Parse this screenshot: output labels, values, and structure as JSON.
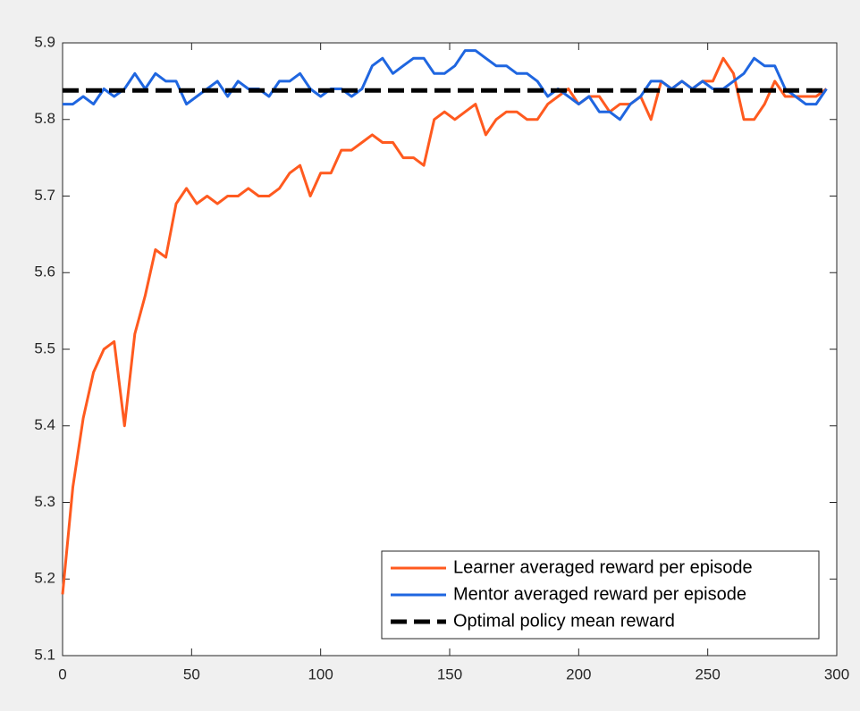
{
  "chart_data": {
    "type": "line",
    "x": [
      0,
      4,
      8,
      12,
      16,
      20,
      24,
      28,
      32,
      36,
      40,
      44,
      48,
      52,
      56,
      60,
      64,
      68,
      72,
      76,
      80,
      84,
      88,
      92,
      96,
      100,
      104,
      108,
      112,
      116,
      120,
      124,
      128,
      132,
      136,
      140,
      144,
      148,
      152,
      156,
      160,
      164,
      168,
      172,
      176,
      180,
      184,
      188,
      192,
      196,
      200,
      204,
      208,
      212,
      216,
      220,
      224,
      228,
      232,
      236,
      240,
      244,
      248,
      252,
      256,
      260,
      264,
      268,
      272,
      276,
      280,
      284,
      288,
      292,
      296
    ],
    "series": [
      {
        "name": "Learner averaged reward per episode",
        "color": "#ff5a1f",
        "dash": false,
        "values": [
          5.18,
          5.32,
          5.41,
          5.47,
          5.5,
          5.51,
          5.4,
          5.52,
          5.57,
          5.63,
          5.62,
          5.69,
          5.71,
          5.69,
          5.7,
          5.69,
          5.7,
          5.7,
          5.71,
          5.7,
          5.7,
          5.71,
          5.73,
          5.74,
          5.7,
          5.73,
          5.73,
          5.76,
          5.76,
          5.77,
          5.78,
          5.77,
          5.77,
          5.75,
          5.75,
          5.74,
          5.8,
          5.81,
          5.8,
          5.81,
          5.82,
          5.78,
          5.8,
          5.81,
          5.81,
          5.8,
          5.8,
          5.82,
          5.83,
          5.84,
          5.82,
          5.83,
          5.83,
          5.81,
          5.82,
          5.82,
          5.83,
          5.8,
          5.85,
          5.84,
          5.85,
          5.84,
          5.85,
          5.85,
          5.88,
          5.86,
          5.8,
          5.8,
          5.82,
          5.85,
          5.83,
          5.83,
          5.83,
          5.83,
          5.84
        ]
      },
      {
        "name": "Mentor averaged reward per episode",
        "color": "#1f66e0",
        "dash": false,
        "values": [
          5.82,
          5.82,
          5.83,
          5.82,
          5.84,
          5.83,
          5.84,
          5.86,
          5.84,
          5.86,
          5.85,
          5.85,
          5.82,
          5.83,
          5.84,
          5.85,
          5.83,
          5.85,
          5.84,
          5.84,
          5.83,
          5.85,
          5.85,
          5.86,
          5.84,
          5.83,
          5.84,
          5.84,
          5.83,
          5.84,
          5.87,
          5.88,
          5.86,
          5.87,
          5.88,
          5.88,
          5.86,
          5.86,
          5.87,
          5.89,
          5.89,
          5.88,
          5.87,
          5.87,
          5.86,
          5.86,
          5.85,
          5.83,
          5.84,
          5.83,
          5.82,
          5.83,
          5.81,
          5.81,
          5.8,
          5.82,
          5.83,
          5.85,
          5.85,
          5.84,
          5.85,
          5.84,
          5.85,
          5.84,
          5.84,
          5.85,
          5.86,
          5.88,
          5.87,
          5.87,
          5.84,
          5.83,
          5.82,
          5.82,
          5.84
        ]
      },
      {
        "name": "Optimal policy mean reward",
        "color": "#000000",
        "dash": true,
        "values": [
          5.838,
          5.838,
          5.838,
          5.838,
          5.838,
          5.838,
          5.838,
          5.838,
          5.838,
          5.838,
          5.838,
          5.838,
          5.838,
          5.838,
          5.838,
          5.838,
          5.838,
          5.838,
          5.838,
          5.838,
          5.838,
          5.838,
          5.838,
          5.838,
          5.838,
          5.838,
          5.838,
          5.838,
          5.838,
          5.838,
          5.838,
          5.838,
          5.838,
          5.838,
          5.838,
          5.838,
          5.838,
          5.838,
          5.838,
          5.838,
          5.838,
          5.838,
          5.838,
          5.838,
          5.838,
          5.838,
          5.838,
          5.838,
          5.838,
          5.838,
          5.838,
          5.838,
          5.838,
          5.838,
          5.838,
          5.838,
          5.838,
          5.838,
          5.838,
          5.838,
          5.838,
          5.838,
          5.838,
          5.838,
          5.838,
          5.838,
          5.838,
          5.838,
          5.838,
          5.838,
          5.838,
          5.838,
          5.838,
          5.838,
          5.838
        ]
      }
    ],
    "xlim": [
      0,
      300
    ],
    "xticks": [
      0,
      50,
      100,
      150,
      200,
      250,
      300
    ],
    "ylim": [
      5.1,
      5.9
    ],
    "yticks": [
      5.1,
      5.2,
      5.3,
      5.4,
      5.5,
      5.6,
      5.7,
      5.8,
      5.9
    ],
    "legend": "lower right"
  }
}
